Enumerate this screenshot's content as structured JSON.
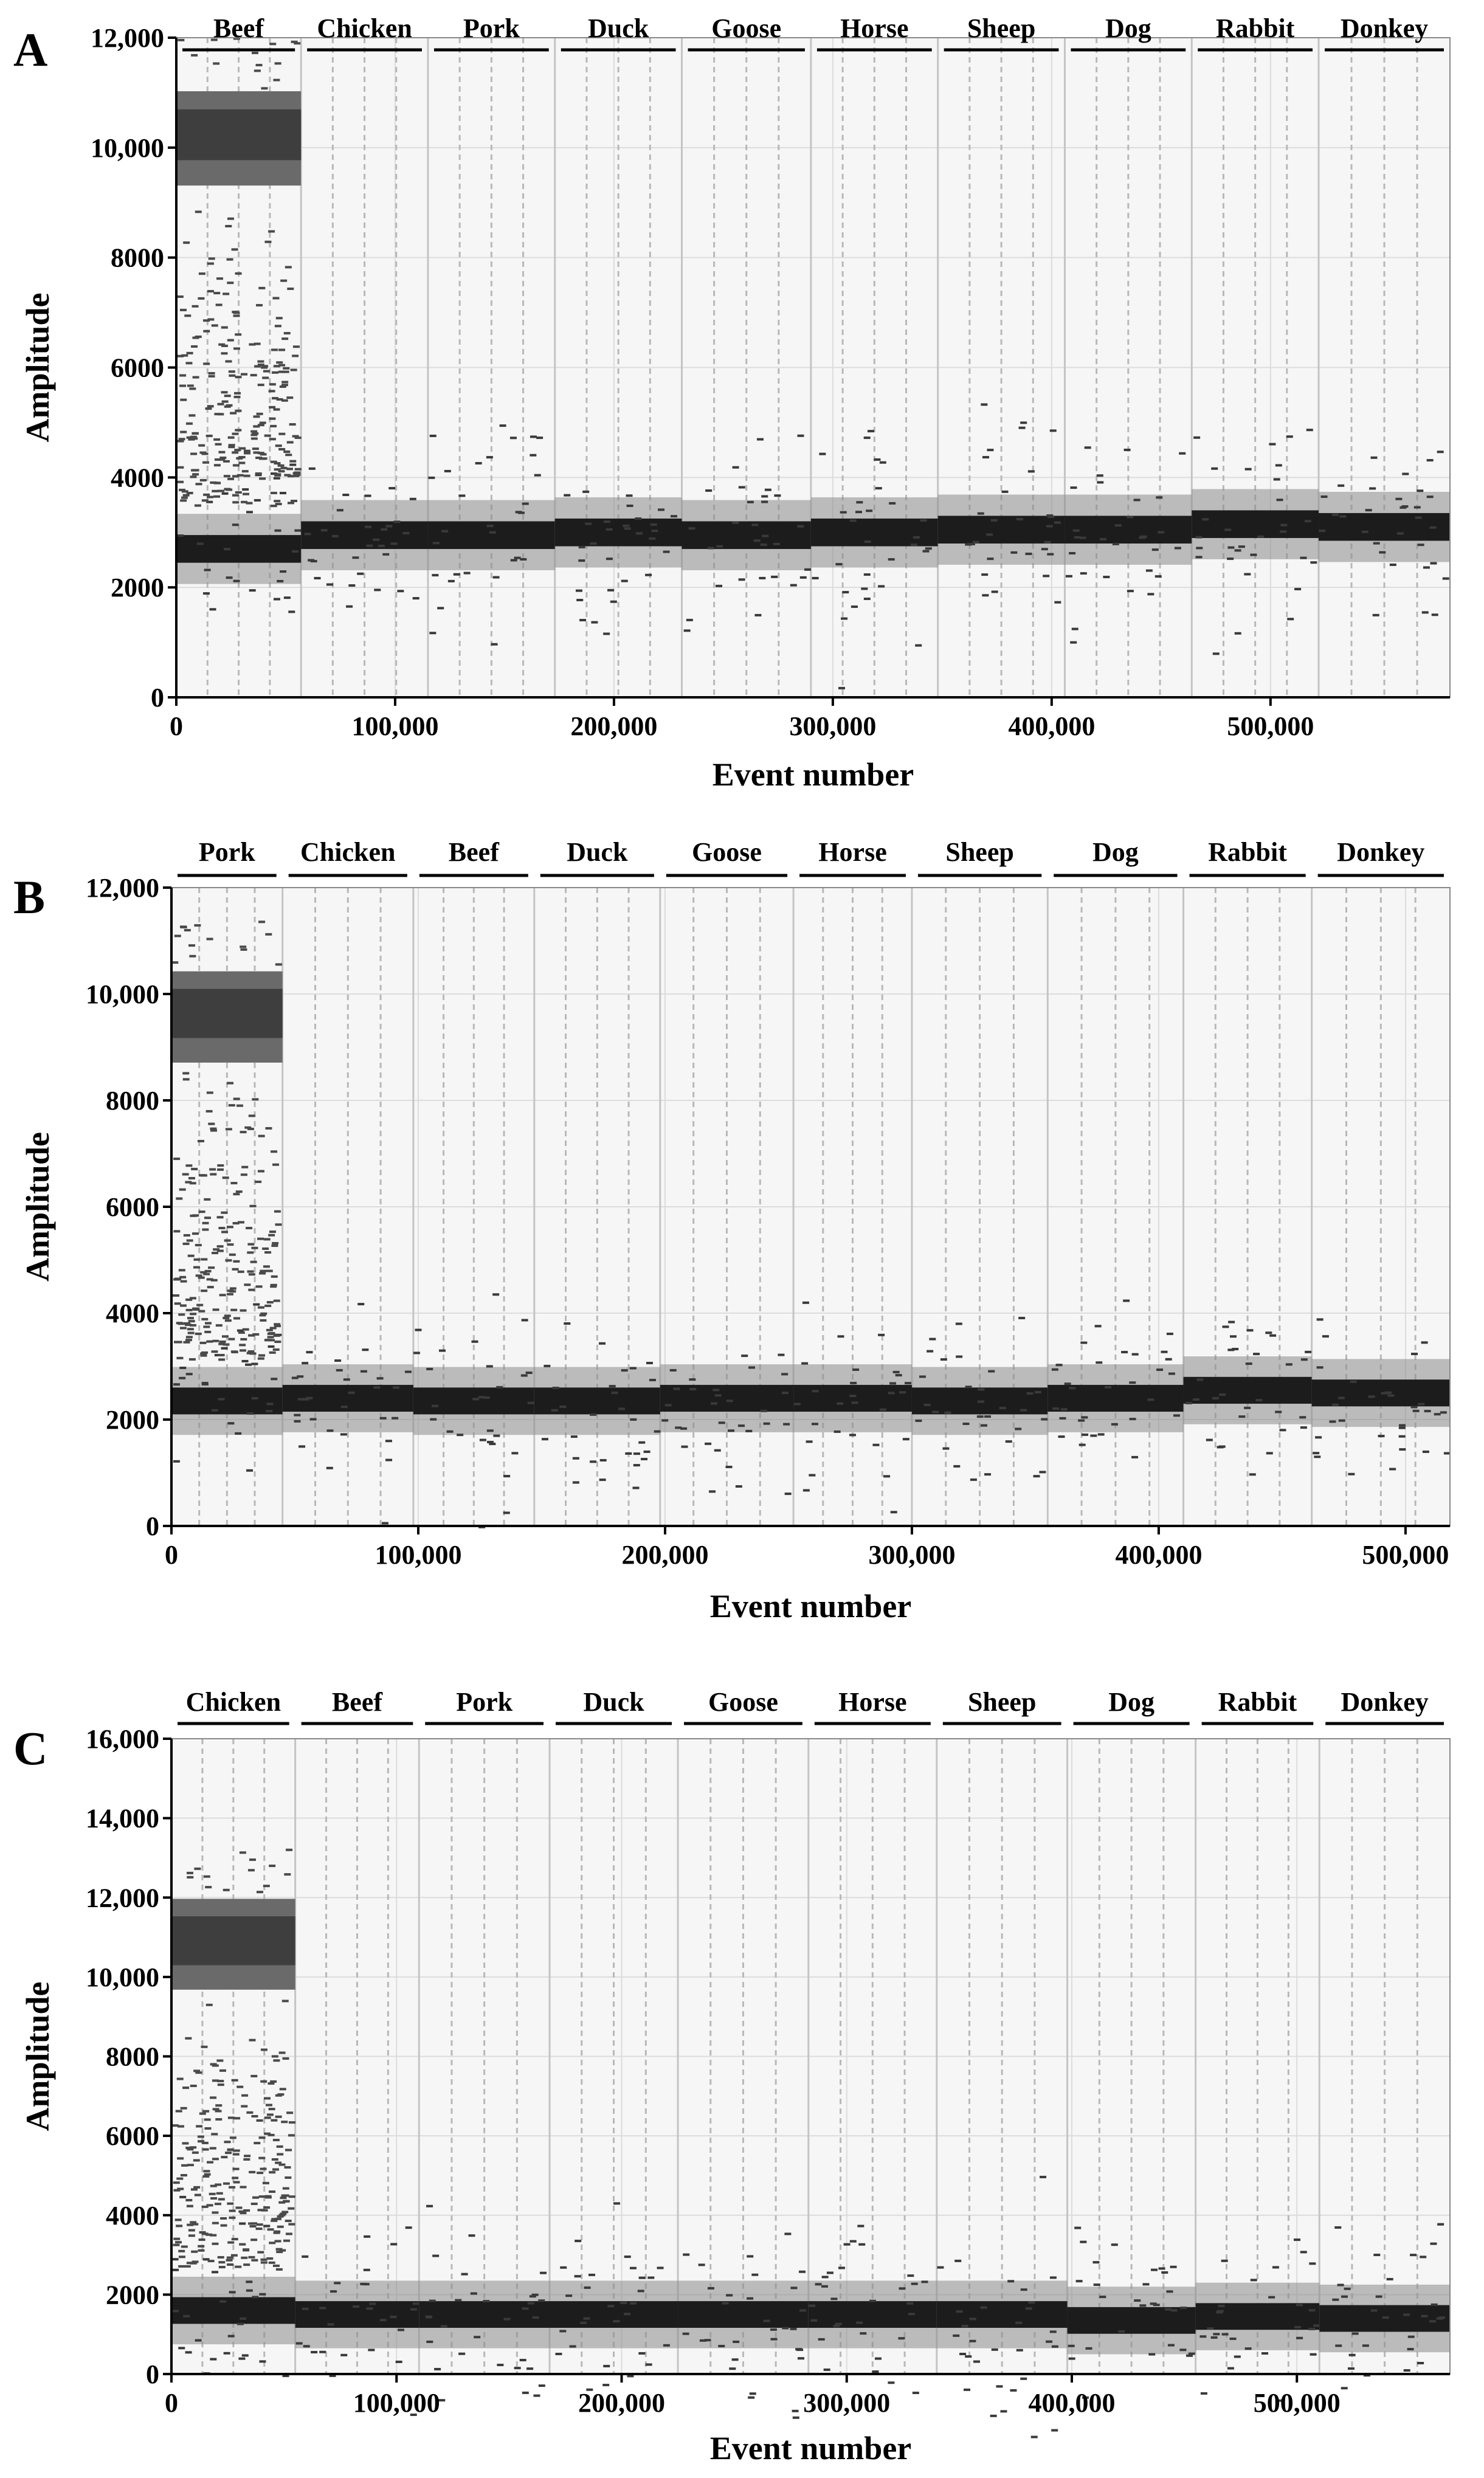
{
  "chart_data": [
    {
      "type": "scatter",
      "panel": "A",
      "xlabel": "Event number",
      "ylabel": "Amplitude",
      "xlim": [
        0,
        582000
      ],
      "ylim": [
        0,
        12000
      ],
      "x_ticks": [
        0,
        100000,
        200000,
        300000,
        400000,
        500000
      ],
      "x_tick_labels": [
        "0",
        "100,000",
        "200,000",
        "300,000",
        "400,000",
        "500,000"
      ],
      "y_ticks": [
        0,
        2000,
        4000,
        6000,
        8000,
        10000,
        12000
      ],
      "y_tick_labels": [
        "0",
        "2000",
        "4000",
        "6000",
        "8000",
        "10,000",
        "12,000"
      ],
      "groups": [
        {
          "label": "Beef",
          "start": 0,
          "end": 57000,
          "positive": true,
          "positive_amplitude": 10300,
          "negative_amplitude": 2700
        },
        {
          "label": "Chicken",
          "start": 57000,
          "end": 115000,
          "positive": false,
          "negative_amplitude": 2950
        },
        {
          "label": "Pork",
          "start": 115000,
          "end": 173000,
          "positive": false,
          "negative_amplitude": 2950
        },
        {
          "label": "Duck",
          "start": 173000,
          "end": 231000,
          "positive": false,
          "negative_amplitude": 3000
        },
        {
          "label": "Goose",
          "start": 231000,
          "end": 290000,
          "positive": false,
          "negative_amplitude": 2950
        },
        {
          "label": "Horse",
          "start": 290000,
          "end": 348000,
          "positive": false,
          "negative_amplitude": 3000
        },
        {
          "label": "Sheep",
          "start": 348000,
          "end": 406000,
          "positive": false,
          "negative_amplitude": 3050
        },
        {
          "label": "Dog",
          "start": 406000,
          "end": 464000,
          "positive": false,
          "negative_amplitude": 3050
        },
        {
          "label": "Rabbit",
          "start": 464000,
          "end": 522000,
          "positive": false,
          "negative_amplitude": 3150
        },
        {
          "label": "Donkey",
          "start": 522000,
          "end": 582000,
          "positive": false,
          "negative_amplitude": 3100
        }
      ]
    },
    {
      "type": "scatter",
      "panel": "B",
      "xlabel": "Event number",
      "ylabel": "Amplitude",
      "xlim": [
        0,
        518000
      ],
      "ylim": [
        0,
        12000
      ],
      "x_ticks": [
        0,
        100000,
        200000,
        300000,
        400000,
        500000
      ],
      "x_tick_labels": [
        "0",
        "100,000",
        "200,000",
        "300,000",
        "400,000",
        "500,000"
      ],
      "y_ticks": [
        0,
        2000,
        4000,
        6000,
        8000,
        10000,
        12000
      ],
      "y_tick_labels": [
        "0",
        "2000",
        "4000",
        "6000",
        "8000",
        "10,000",
        "12,000"
      ],
      "groups": [
        {
          "label": "Pork",
          "start": 0,
          "end": 45000,
          "positive": true,
          "positive_amplitude": 9700,
          "negative_amplitude": 2350
        },
        {
          "label": "Chicken",
          "start": 45000,
          "end": 98000,
          "positive": false,
          "negative_amplitude": 2400
        },
        {
          "label": "Beef",
          "start": 98000,
          "end": 147000,
          "positive": false,
          "negative_amplitude": 2350
        },
        {
          "label": "Duck",
          "start": 147000,
          "end": 198000,
          "positive": false,
          "negative_amplitude": 2350
        },
        {
          "label": "Goose",
          "start": 198000,
          "end": 252000,
          "positive": false,
          "negative_amplitude": 2400
        },
        {
          "label": "Horse",
          "start": 252000,
          "end": 300000,
          "positive": false,
          "negative_amplitude": 2400
        },
        {
          "label": "Sheep",
          "start": 300000,
          "end": 355000,
          "positive": false,
          "negative_amplitude": 2350
        },
        {
          "label": "Dog",
          "start": 355000,
          "end": 410000,
          "positive": false,
          "negative_amplitude": 2400
        },
        {
          "label": "Rabbit",
          "start": 410000,
          "end": 462000,
          "positive": false,
          "negative_amplitude": 2550
        },
        {
          "label": "Donkey",
          "start": 462000,
          "end": 518000,
          "positive": false,
          "negative_amplitude": 2500
        }
      ]
    },
    {
      "type": "scatter",
      "panel": "C",
      "xlabel": "Event number",
      "ylabel": "Amplitude",
      "xlim": [
        0,
        568000
      ],
      "ylim": [
        0,
        16000
      ],
      "x_ticks": [
        0,
        100000,
        200000,
        300000,
        400000,
        500000
      ],
      "x_tick_labels": [
        "0",
        "100,000",
        "200,000",
        "300,000",
        "400,000",
        "500,000"
      ],
      "y_ticks": [
        0,
        2000,
        4000,
        6000,
        8000,
        10000,
        12000,
        14000,
        16000
      ],
      "y_tick_labels": [
        "0",
        "2000",
        "4000",
        "6000",
        "8000",
        "10,000",
        "12,000",
        "14,000",
        "16,000"
      ],
      "groups": [
        {
          "label": "Chicken",
          "start": 0,
          "end": 55000,
          "positive": true,
          "positive_amplitude": 11000,
          "negative_amplitude": 1600
        },
        {
          "label": "Beef",
          "start": 55000,
          "end": 110000,
          "positive": false,
          "negative_amplitude": 1500
        },
        {
          "label": "Pork",
          "start": 110000,
          "end": 168000,
          "positive": false,
          "negative_amplitude": 1500
        },
        {
          "label": "Duck",
          "start": 168000,
          "end": 225000,
          "positive": false,
          "negative_amplitude": 1500
        },
        {
          "label": "Goose",
          "start": 225000,
          "end": 283000,
          "positive": false,
          "negative_amplitude": 1500
        },
        {
          "label": "Horse",
          "start": 283000,
          "end": 340000,
          "positive": false,
          "negative_amplitude": 1500
        },
        {
          "label": "Sheep",
          "start": 340000,
          "end": 398000,
          "positive": false,
          "negative_amplitude": 1500
        },
        {
          "label": "Dog",
          "start": 398000,
          "end": 455000,
          "positive": false,
          "negative_amplitude": 1350
        },
        {
          "label": "Rabbit",
          "start": 455000,
          "end": 510000,
          "positive": false,
          "negative_amplitude": 1450
        },
        {
          "label": "Donkey",
          "start": 510000,
          "end": 568000,
          "positive": false,
          "negative_amplitude": 1400
        }
      ]
    }
  ]
}
